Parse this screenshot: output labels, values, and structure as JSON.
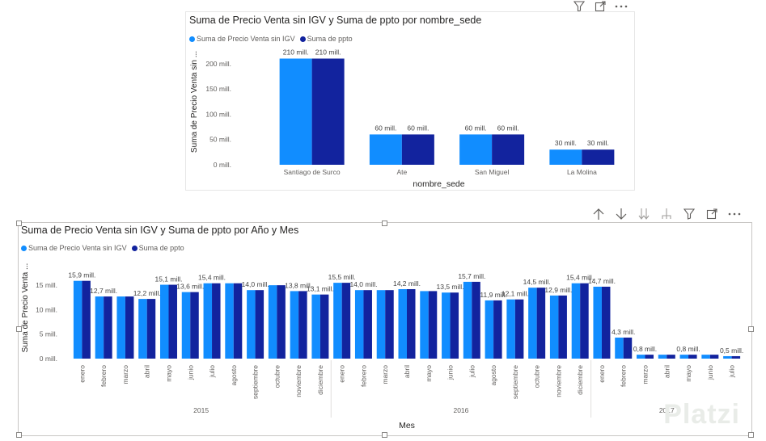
{
  "header_top": {
    "icons": [
      "filter-icon",
      "focus-mode-icon",
      "more-options-icon"
    ]
  },
  "header_bottom": {
    "icons": [
      "drill-up-icon",
      "drill-down-icon",
      "expand-all-icon",
      "expand-hierarchy-icon",
      "filter-icon",
      "focus-mode-icon",
      "more-options-icon"
    ]
  },
  "watermark": "Platzi",
  "colors": {
    "series1": "#118DFF",
    "series2": "#12239E",
    "axis_text": "#605e5c",
    "grid": "#e1dfdd"
  },
  "chart_data": [
    {
      "type": "bar",
      "title": "Suma de Precio Venta sin IGV y Suma de ppto por nombre_sede",
      "xlabel": "nombre_sede",
      "ylabel": "Suma de Precio Venta sin ...",
      "categories": [
        "Santiago de Surco",
        "Ate",
        "San Miguel",
        "La Molina"
      ],
      "series": [
        {
          "name": "Suma de Precio Venta sin IGV",
          "values": [
            210,
            60,
            60,
            30
          ],
          "labels": [
            "210 mill.",
            "60 mill.",
            "60 mill.",
            "30 mill."
          ]
        },
        {
          "name": "Suma de ppto",
          "values": [
            210,
            60,
            60,
            30
          ],
          "labels": [
            "210 mill.",
            "60 mill.",
            "60 mill.",
            "30 mill."
          ]
        }
      ],
      "yticks": [
        "0 mill.",
        "50 mill.",
        "100 mill.",
        "150 mill.",
        "200 mill."
      ],
      "ylim": [
        0,
        230
      ],
      "grid": false,
      "legend": "top-left"
    },
    {
      "type": "bar",
      "title": "Suma de Precio Venta sin IGV y Suma de ppto por Año y Mes",
      "xlabel": "Mes",
      "ylabel": "Suma de Precio Venta ...",
      "categories": [
        "enero",
        "febrero",
        "marzo",
        "abril",
        "mayo",
        "junio",
        "julio",
        "agosto",
        "septiembre",
        "octubre",
        "noviembre",
        "diciembre",
        "enero",
        "febrero",
        "marzo",
        "abril",
        "mayo",
        "junio",
        "julio",
        "agosto",
        "septiembre",
        "octubre",
        "noviembre",
        "diciembre",
        "enero",
        "febrero",
        "marzo",
        "abril",
        "mayo",
        "junio",
        "julio"
      ],
      "groups": [
        {
          "label": "2015",
          "count": 12
        },
        {
          "label": "2016",
          "count": 12
        },
        {
          "label": "2017",
          "count": 7
        }
      ],
      "series": [
        {
          "name": "Suma de Precio Venta sin IGV",
          "values": [
            15.9,
            12.7,
            12.7,
            12.2,
            15.1,
            13.6,
            15.4,
            15.4,
            14.0,
            15.0,
            13.8,
            13.1,
            15.5,
            14.0,
            14.0,
            14.2,
            13.8,
            13.5,
            15.7,
            11.9,
            12.1,
            14.5,
            12.9,
            15.4,
            14.7,
            4.3,
            0.8,
            0.8,
            0.8,
            0.8,
            0.5
          ]
        },
        {
          "name": "Suma de ppto",
          "values": [
            15.9,
            12.7,
            12.7,
            12.2,
            15.1,
            13.6,
            15.4,
            15.4,
            14.0,
            15.0,
            13.8,
            13.1,
            15.5,
            14.0,
            14.0,
            14.2,
            13.8,
            13.5,
            15.7,
            11.9,
            12.1,
            14.5,
            12.9,
            15.4,
            14.7,
            4.3,
            0.8,
            0.8,
            0.8,
            0.8,
            0.5
          ]
        }
      ],
      "labels": [
        "15,9 mill.",
        "12,7 mill.",
        "",
        "12,2 mill.",
        "15,1 mill.",
        "13,6 mill.",
        "15,4 mill.",
        "",
        "14,0 mill.",
        "",
        "13,8 mill.",
        "13,1 mill.",
        "15,5 mill.",
        "14,0 mill.",
        "",
        "14,2 mill.",
        "",
        "13,5 mill.",
        "15,7 mill.",
        "11,9 mill.",
        "12,1 mill.",
        "14,5 mill.",
        "12,9 mill.",
        "15,4 mill.",
        "14,7 mill.",
        "4,3 mill.",
        "0,8 mill.",
        "",
        "0,8 mill.",
        "",
        "0,5 mill."
      ],
      "yticks": [
        "0 mill.",
        "5 mill.",
        "10 mill.",
        "15 mill."
      ],
      "ylim": [
        0,
        17.5
      ],
      "grid": false,
      "legend": "top-left"
    }
  ]
}
